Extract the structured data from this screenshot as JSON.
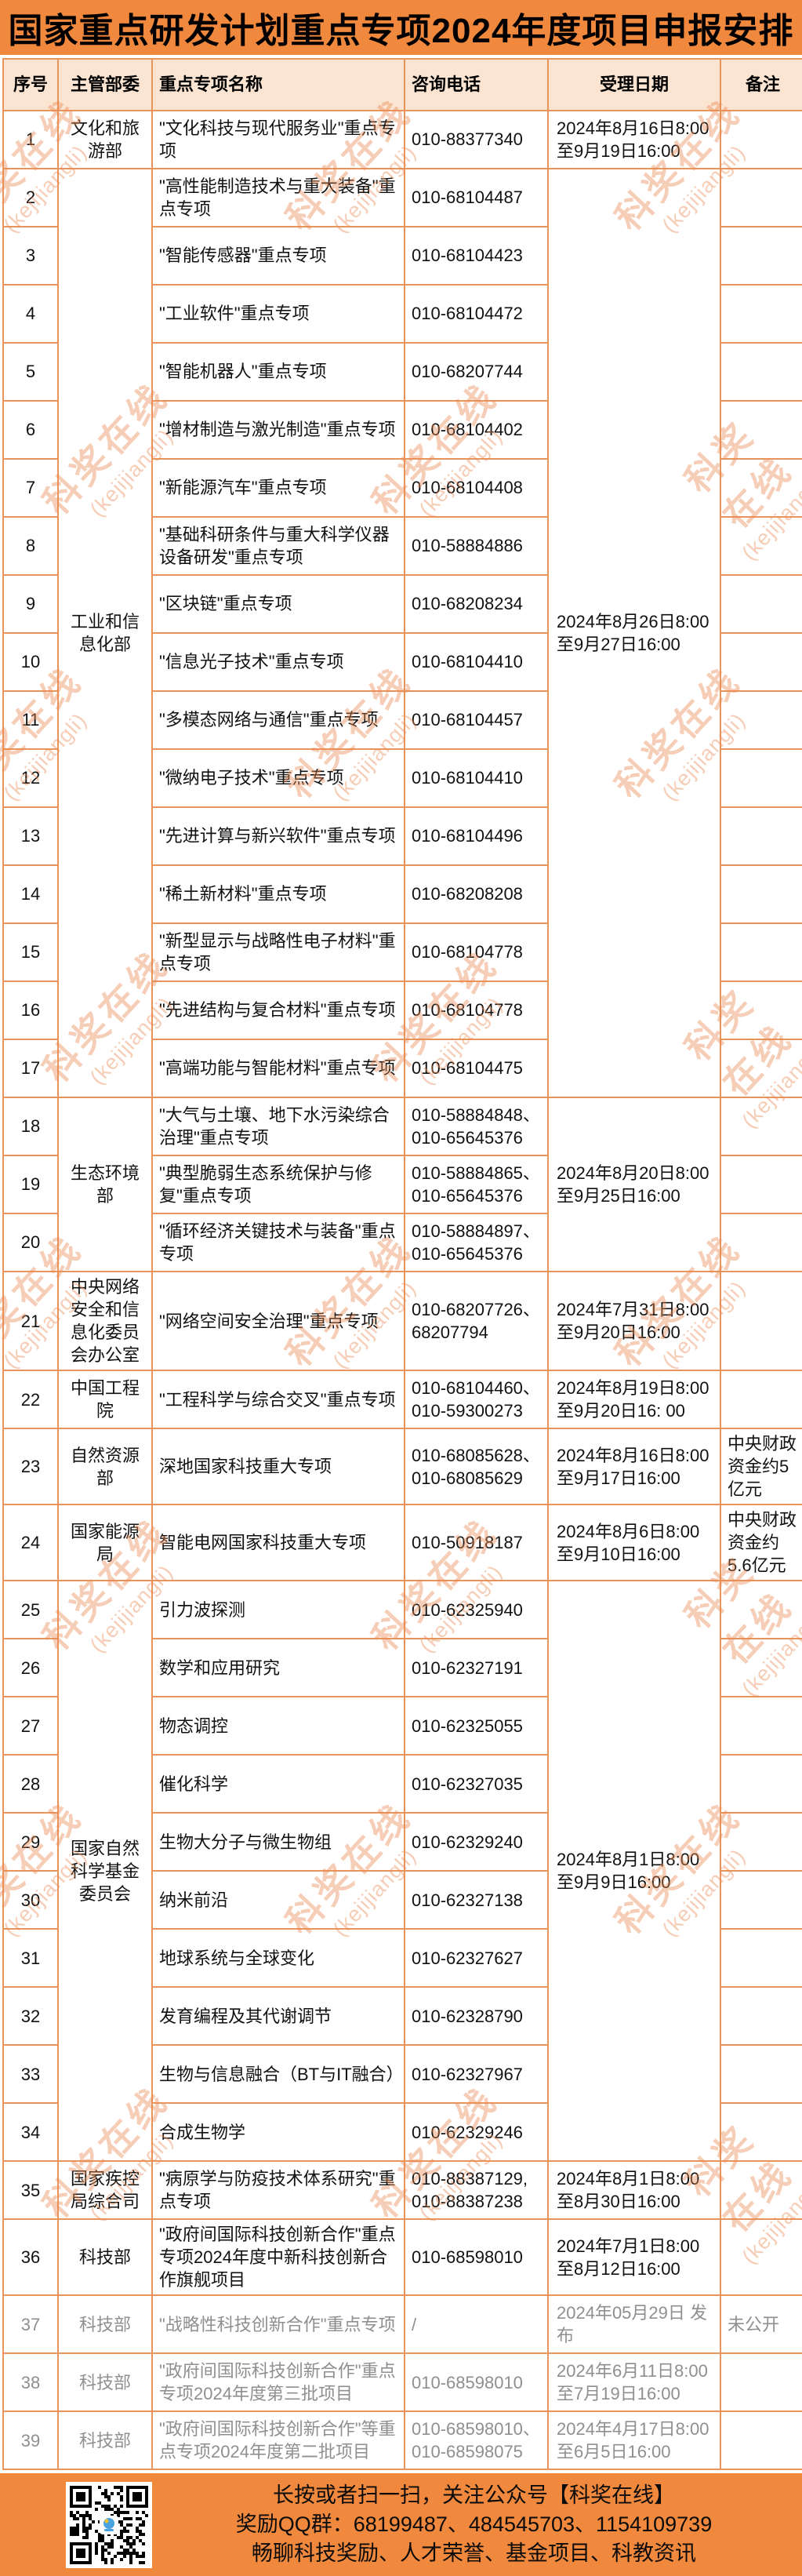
{
  "title": "国家重点研发计划重点专项2024年度项目申报安排",
  "colors": {
    "accent": "#F0883D",
    "grid_border": "#E9945B",
    "header_row_bg": "#FBE5D2",
    "gray_text": "#8F8F8F",
    "watermark": "#EC8A52"
  },
  "watermark": {
    "line1": "科奖在线",
    "line2": "(kejijiangli)"
  },
  "table": {
    "headers": [
      "序号",
      "主管部委",
      "重点专项名称",
      "咨询电话",
      "受理日期",
      "备注"
    ],
    "rows": [
      {
        "no": "1",
        "ministry": {
          "text": "文化和旅游部",
          "span": 1
        },
        "name": "\"文化科技与现代服务业\"重点专项",
        "phone": "010-88377340",
        "date": {
          "text": "2024年8月16日8:00\n至9月19日16:00",
          "span": 1
        },
        "remark": ""
      },
      {
        "no": "2",
        "ministry": {
          "text": "工业和信息化部",
          "span": 16
        },
        "name": "\"高性能制造技术与重大装备\"重点专项",
        "phone": "010-68104487",
        "date": {
          "text": "2024年8月26日8:00\n至9月27日16:00",
          "span": 16
        },
        "remark": ""
      },
      {
        "no": "3",
        "name": "\"智能传感器\"重点专项",
        "phone": "010-68104423",
        "remark": ""
      },
      {
        "no": "4",
        "name": "\"工业软件\"重点专项",
        "phone": "010-68104472",
        "remark": ""
      },
      {
        "no": "5",
        "name": "\"智能机器人\"重点专项",
        "phone": "010-68207744",
        "remark": ""
      },
      {
        "no": "6",
        "name": "\"增材制造与激光制造\"重点专项",
        "phone": "010-68104402",
        "remark": ""
      },
      {
        "no": "7",
        "name": "\"新能源汽车\"重点专项",
        "phone": "010-68104408",
        "remark": ""
      },
      {
        "no": "8",
        "name": "\"基础科研条件与重大科学仪器设备研发\"重点专项",
        "phone": "010-58884886",
        "remark": ""
      },
      {
        "no": "9",
        "name": "\"区块链\"重点专项",
        "phone": "010-68208234",
        "remark": ""
      },
      {
        "no": "10",
        "name": "\"信息光子技术\"重点专项",
        "phone": "010-68104410",
        "remark": ""
      },
      {
        "no": "11",
        "name": "\"多模态网络与通信\"重点专项",
        "phone": "010-68104457",
        "remark": ""
      },
      {
        "no": "12",
        "name": "\"微纳电子技术\"重点专项",
        "phone": "010-68104410",
        "remark": ""
      },
      {
        "no": "13",
        "name": "\"先进计算与新兴软件\"重点专项",
        "phone": "010-68104496",
        "remark": ""
      },
      {
        "no": "14",
        "name": "\"稀土新材料\"重点专项",
        "phone": "010-68208208",
        "remark": ""
      },
      {
        "no": "15",
        "name": "\"新型显示与战略性电子材料\"重点专项",
        "phone": "010-68104778",
        "remark": ""
      },
      {
        "no": "16",
        "name": "\"先进结构与复合材料\"重点专项",
        "phone": "010-68104778",
        "remark": ""
      },
      {
        "no": "17",
        "name": "\"高端功能与智能材料\"重点专项",
        "phone": "010-68104475",
        "remark": ""
      },
      {
        "no": "18",
        "ministry": {
          "text": "生态环境部",
          "span": 3
        },
        "name": "\"大气与土壤、地下水污染综合治理\"重点专项",
        "phone": "010-58884848、010-65645376",
        "date": {
          "text": "2024年8月20日8:00\n至9月25日16:00",
          "span": 3
        },
        "remark": ""
      },
      {
        "no": "19",
        "name": "\"典型脆弱生态系统保护与修复\"重点专项",
        "phone": "010-58884865、010-65645376",
        "remark": ""
      },
      {
        "no": "20",
        "name": "\"循环经济关键技术与装备\"重点专项",
        "phone": "010-58884897、010-65645376",
        "remark": ""
      },
      {
        "no": "21",
        "ministry": {
          "text": "中央网络安全和信息化委员会办公室",
          "span": 1
        },
        "name": "\"网络空间安全治理\"重点专项",
        "phone": "010-68207726、68207794",
        "date": {
          "text": "2024年7月31日8:00\n至9月20日16:00",
          "span": 1
        },
        "remark": ""
      },
      {
        "no": "22",
        "ministry": {
          "text": "中国工程院",
          "span": 1
        },
        "name": "\"工程科学与综合交叉\"重点专项",
        "phone": "010-68104460、010-59300273",
        "date": {
          "text": "2024年8月19日8:00\n至9月20日16: 00",
          "span": 1
        },
        "remark": ""
      },
      {
        "no": "23",
        "ministry": {
          "text": "自然资源部",
          "span": 1
        },
        "name": "深地国家科技重大专项",
        "phone": "010-68085628、010-68085629",
        "date": {
          "text": "2024年8月16日8:00\n至9月17日16:00",
          "span": 1
        },
        "remark": "中央财政资金约5亿元"
      },
      {
        "no": "24",
        "ministry": {
          "text": "国家能源局",
          "span": 1
        },
        "name": "智能电网国家科技重大专项",
        "phone": "010-50918187",
        "date": {
          "text": "2024年8月6日8:00\n至9月10日16:00",
          "span": 1
        },
        "remark": "中央财政资金约5.6亿元"
      },
      {
        "no": "25",
        "ministry": {
          "text": "国家自然科学基金委员会",
          "span": 10
        },
        "name": "引力波探测",
        "phone": "010-62325940",
        "date": {
          "text": "2024年8月1日8:00\n至9月9日16:00",
          "span": 10
        },
        "remark": ""
      },
      {
        "no": "26",
        "name": "数学和应用研究",
        "phone": "010-62327191",
        "remark": ""
      },
      {
        "no": "27",
        "name": "物态调控",
        "phone": "010-62325055",
        "remark": ""
      },
      {
        "no": "28",
        "name": "催化科学",
        "phone": "010-62327035",
        "remark": ""
      },
      {
        "no": "29",
        "name": "生物大分子与微生物组",
        "phone": "010-62329240",
        "remark": ""
      },
      {
        "no": "30",
        "name": "纳米前沿",
        "phone": "010-62327138",
        "remark": ""
      },
      {
        "no": "31",
        "name": "地球系统与全球变化",
        "phone": "010-62327627",
        "remark": ""
      },
      {
        "no": "32",
        "name": "发育编程及其代谢调节",
        "phone": "010-62328790",
        "remark": ""
      },
      {
        "no": "33",
        "name": "生物与信息融合（BT与IT融合）",
        "phone": "010-62327967",
        "remark": ""
      },
      {
        "no": "34",
        "name": "合成生物学",
        "phone": "010-62329246",
        "remark": ""
      },
      {
        "no": "35",
        "ministry": {
          "text": "国家疾控局综合司",
          "span": 1
        },
        "name": "\"病原学与防疫技术体系研究\"重点专项",
        "phone": "010-88387129, 010-88387238",
        "date": {
          "text": "2024年8月1日8:00\n至8月30日16:00",
          "span": 1
        },
        "remark": ""
      },
      {
        "no": "36",
        "ministry": {
          "text": "科技部",
          "span": 1
        },
        "name": "\"政府间国际科技创新合作\"重点专项2024年度中新科技创新合作旗舰项目",
        "phone": "010-68598010",
        "date": {
          "text": "2024年7月1日8:00\n至8月12日16:00",
          "span": 1
        },
        "remark": ""
      },
      {
        "no": "37",
        "gray": true,
        "ministry": {
          "text": "科技部",
          "span": 1
        },
        "name": "\"战略性科技创新合作\"重点专项",
        "phone": "/",
        "date": {
          "text": "2024年05月29日 发布",
          "span": 1
        },
        "remark": "未公开"
      },
      {
        "no": "38",
        "gray": true,
        "ministry": {
          "text": "科技部",
          "span": 1
        },
        "name": "\"政府间国际科技创新合作\"重点专项2024年度第三批项目",
        "phone": "010-68598010",
        "date": {
          "text": "2024年6月11日8:00\n至7月19日16:00",
          "span": 1
        },
        "remark": ""
      },
      {
        "no": "39",
        "gray": true,
        "ministry": {
          "text": "科技部",
          "span": 1
        },
        "name": "\"政府间国际科技创新合作\"等重点专项2024年度第二批项目",
        "phone": "010-68598010、010-68598075",
        "date": {
          "text": "2024年4月17日8:00\n至6月5日16:00",
          "span": 1
        },
        "remark": ""
      }
    ]
  },
  "footer": {
    "line1": "长按或者扫一扫，关注公众号【科奖在线】",
    "line2": "奖励QQ群：68199487、484545703、1154109739",
    "line3": "畅聊科技奖励、人才荣誉、基金项目、科教资讯"
  }
}
